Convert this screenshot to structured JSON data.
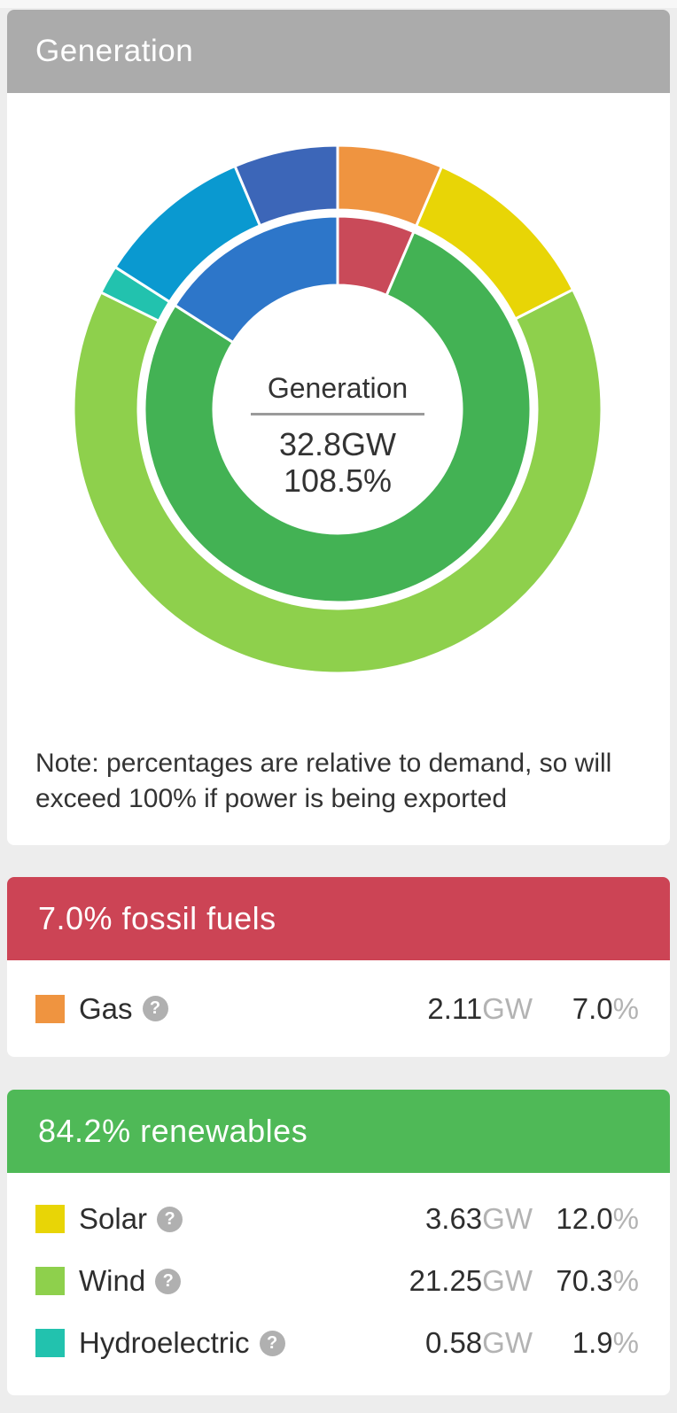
{
  "card_generation": {
    "title": "Generation",
    "header_bg": "#ababab",
    "center": {
      "label": "Generation",
      "value_gw": "32.8GW",
      "value_percent": "108.5%"
    },
    "note": "Note: percentages are relative to demand, so will exceed 100% if power is being exported"
  },
  "groups": [
    {
      "title": "7.0% fossil fuels",
      "header_bg": "#cc4455",
      "rows": [
        {
          "label": "Gas",
          "help": "?",
          "swatch": "#ef9440",
          "value_gw": "2.11",
          "unit_gw": "GW",
          "value_pct": "7.0",
          "unit_pct": "%"
        }
      ]
    },
    {
      "title": "84.2% renewables",
      "header_bg": "#4fb957",
      "rows": [
        {
          "label": "Solar",
          "help": "?",
          "swatch": "#e8d506",
          "value_gw": "3.63",
          "unit_gw": "GW",
          "value_pct": "12.0",
          "unit_pct": "%"
        },
        {
          "label": "Wind",
          "help": "?",
          "swatch": "#8ed04c",
          "value_gw": "21.25",
          "unit_gw": "GW",
          "value_pct": "70.3",
          "unit_pct": "%"
        },
        {
          "label": "Hydroelectric",
          "help": "?",
          "swatch": "#22c2ae",
          "value_gw": "0.58",
          "unit_gw": "GW",
          "value_pct": "1.9",
          "unit_pct": "%"
        }
      ]
    }
  ],
  "chart_data": {
    "type": "donut",
    "title": "Generation",
    "center_label": "Generation",
    "total_gw": 32.8,
    "total_percent_of_demand": 108.5,
    "units": "percent of demand",
    "start_angle_deg": 0,
    "direction": "clockwise",
    "note": "Note: percentages are relative to demand, so will exceed 100% if power is being exported",
    "rings": {
      "inner_categories": [
        {
          "label": "fossil fuels",
          "percent": 7.0,
          "color": "#c94a59"
        },
        {
          "label": "renewables",
          "percent": 84.2,
          "color": "#43b254"
        },
        {
          "label": "other (unlabeled)",
          "percent": 17.3,
          "color": "#2d76c9"
        }
      ],
      "outer_sources": [
        {
          "label": "Gas",
          "percent": 7.0,
          "gw": 2.11,
          "color": "#ef9440"
        },
        {
          "label": "Solar",
          "percent": 12.0,
          "gw": 3.63,
          "color": "#e8d506"
        },
        {
          "label": "Wind",
          "percent": 70.3,
          "gw": 21.25,
          "color": "#8ed04c"
        },
        {
          "label": "Hydroelectric",
          "percent": 1.9,
          "gw": 0.58,
          "color": "#22c2ae"
        },
        {
          "label": "unlabeled (light blue)",
          "percent": 10.4,
          "color": "#0a99d0"
        },
        {
          "label": "unlabeled (dark blue)",
          "percent": 6.9,
          "color": "#3c66b8"
        }
      ]
    }
  }
}
